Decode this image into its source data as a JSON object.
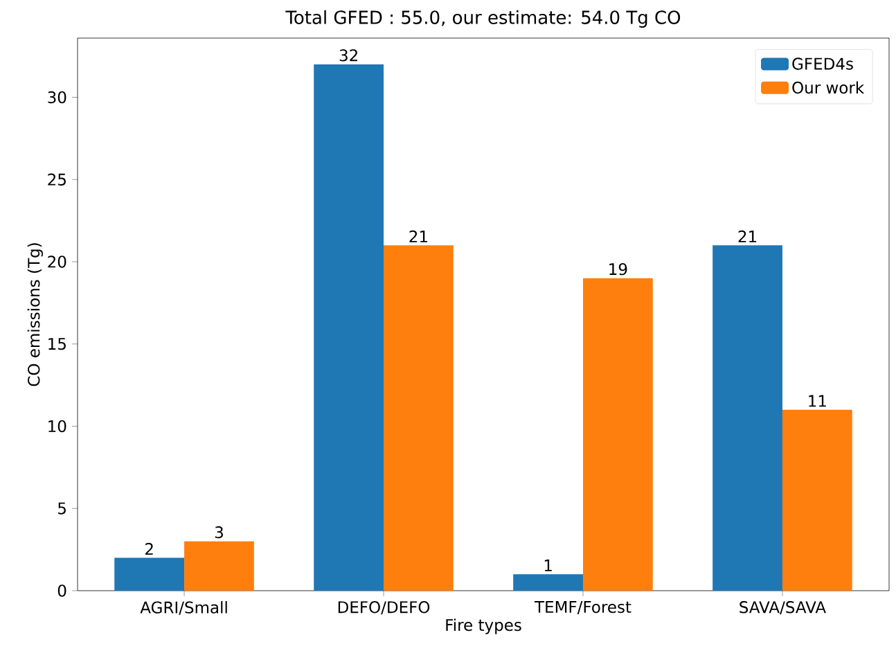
{
  "chart_data": {
    "type": "bar",
    "title": "Total GFED : 55.0, our estimate: 54.0 Tg CO",
    "xlabel": "Fire types",
    "ylabel": "CO emissions (Tg)",
    "categories": [
      "AGRI/Small",
      "DEFO/DEFO",
      "TEMF/Forest",
      "SAVA/SAVA"
    ],
    "series": [
      {
        "name": "GFED4s",
        "color": "#1f77b4",
        "values": [
          2,
          32,
          1,
          21
        ]
      },
      {
        "name": "Our work",
        "color": "#ff7f0e",
        "values": [
          3,
          21,
          19,
          11
        ]
      }
    ],
    "ylim": [
      0,
      33.6
    ],
    "yticks": [
      0,
      5,
      10,
      15,
      20,
      25,
      30
    ],
    "data_labels": true,
    "legend": "top right",
    "grid": false
  }
}
